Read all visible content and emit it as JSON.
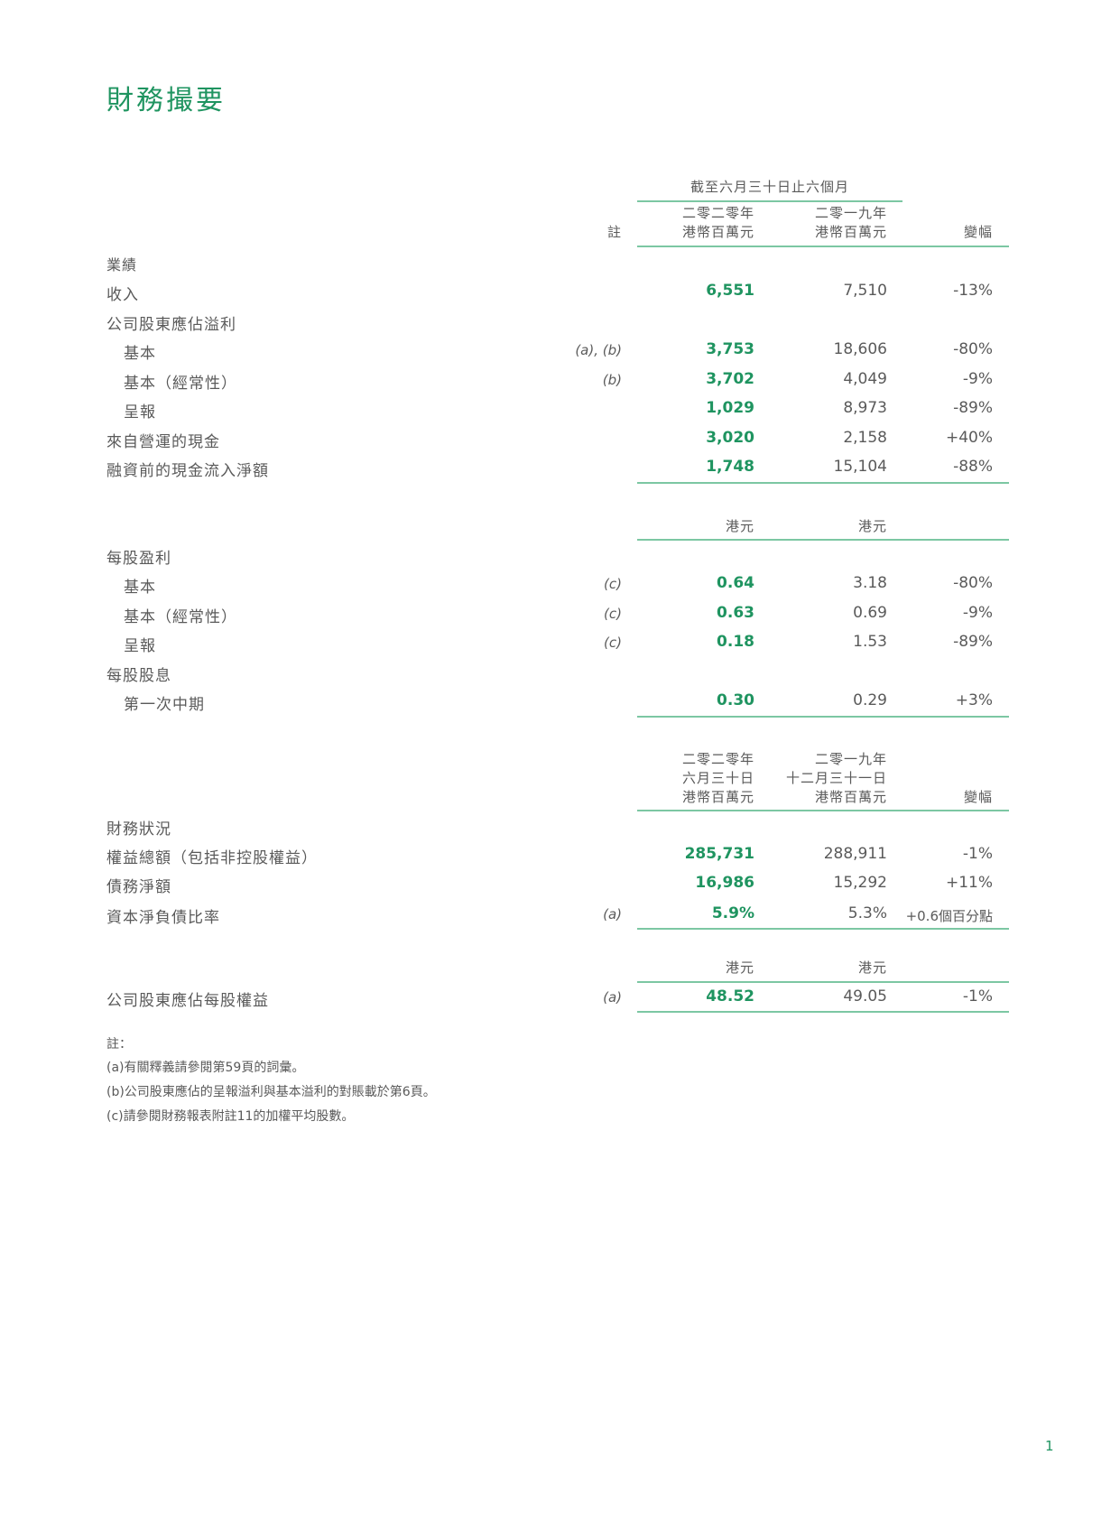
{
  "title": "財務撮要",
  "header1": {
    "period": "截至六月三十日止六個月",
    "note_label": "註",
    "col2020": [
      "二零二零年",
      "港幣百萬元"
    ],
    "col2019": [
      "二零一九年",
      "港幣百萬元"
    ],
    "change": "變幅"
  },
  "section1_title": "業績",
  "section1_rows": [
    {
      "label": "收入",
      "indent": false,
      "note": "",
      "v2020": "6,551",
      "v2019": "7,510",
      "change": "-13%"
    },
    {
      "label": "公司股東應佔溢利",
      "indent": false,
      "note": "",
      "v2020": "",
      "v2019": "",
      "change": ""
    },
    {
      "label": "基本",
      "indent": true,
      "note": "(a), (b)",
      "v2020": "3,753",
      "v2019": "18,606",
      "change": "-80%"
    },
    {
      "label": "基本（經常性）",
      "indent": true,
      "note": "(b)",
      "v2020": "3,702",
      "v2019": "4,049",
      "change": "-9%"
    },
    {
      "label": "呈報",
      "indent": true,
      "note": "",
      "v2020": "1,029",
      "v2019": "8,973",
      "change": "-89%"
    },
    {
      "label": "來自營運的現金",
      "indent": false,
      "note": "",
      "v2020": "3,020",
      "v2019": "2,158",
      "change": "+40%"
    },
    {
      "label": "融資前的現金流入淨額",
      "indent": false,
      "note": "",
      "v2020": "1,748",
      "v2019": "15,104",
      "change": "-88%"
    }
  ],
  "header2": {
    "col2020": "港元",
    "col2019": "港元"
  },
  "section2_rows": [
    {
      "label": "每股盈利",
      "indent": false,
      "note": "",
      "v2020": "",
      "v2019": "",
      "change": ""
    },
    {
      "label": "基本",
      "indent": true,
      "note": "(c)",
      "v2020": "0.64",
      "v2019": "3.18",
      "change": "-80%"
    },
    {
      "label": "基本（經常性）",
      "indent": true,
      "note": "(c)",
      "v2020": "0.63",
      "v2019": "0.69",
      "change": "-9%"
    },
    {
      "label": "呈報",
      "indent": true,
      "note": "(c)",
      "v2020": "0.18",
      "v2019": "1.53",
      "change": "-89%"
    },
    {
      "label": "每股股息",
      "indent": false,
      "note": "",
      "v2020": "",
      "v2019": "",
      "change": ""
    },
    {
      "label": "第一次中期",
      "indent": true,
      "note": "",
      "v2020": "0.30",
      "v2019": "0.29",
      "change": "+3%"
    }
  ],
  "header3": {
    "col2020": [
      "二零二零年",
      "六月三十日",
      "港幣百萬元"
    ],
    "col2019": [
      "二零一九年",
      "十二月三十一日",
      "港幣百萬元"
    ],
    "change": "變幅"
  },
  "section3_title": "財務狀況",
  "section3_rows": [
    {
      "label": "權益總額（包括非控股權益）",
      "indent": false,
      "note": "",
      "v2020": "285,731",
      "v2019": "288,911",
      "change": "-1%"
    },
    {
      "label": "債務淨額",
      "indent": false,
      "note": "",
      "v2020": "16,986",
      "v2019": "15,292",
      "change": "+11%"
    },
    {
      "label": "資本淨負債比率",
      "indent": false,
      "note": "(a)",
      "v2020": "5.9%",
      "v2019": "5.3%",
      "change": "+0.6個百分點"
    }
  ],
  "header4": {
    "col2020": "港元",
    "col2019": "港元"
  },
  "section4_rows": [
    {
      "label": "公司股東應佔每股權益",
      "indent": false,
      "note": "(a)",
      "v2020": "48.52",
      "v2019": "49.05",
      "change": "-1%"
    }
  ],
  "footnotes": {
    "title": "註：",
    "items": [
      "(a)有關釋義請參閱第59頁的詞彙。",
      "(b)公司股東應佔的呈報溢利與基本溢利的對賬載於第6頁。",
      "(c)請參閱財務報表附註11的加權平均股數。"
    ]
  },
  "page_number": "1",
  "colors": {
    "accent": "#1f9460",
    "rule": "#7cc7a3",
    "text": "#5a5a5a"
  }
}
